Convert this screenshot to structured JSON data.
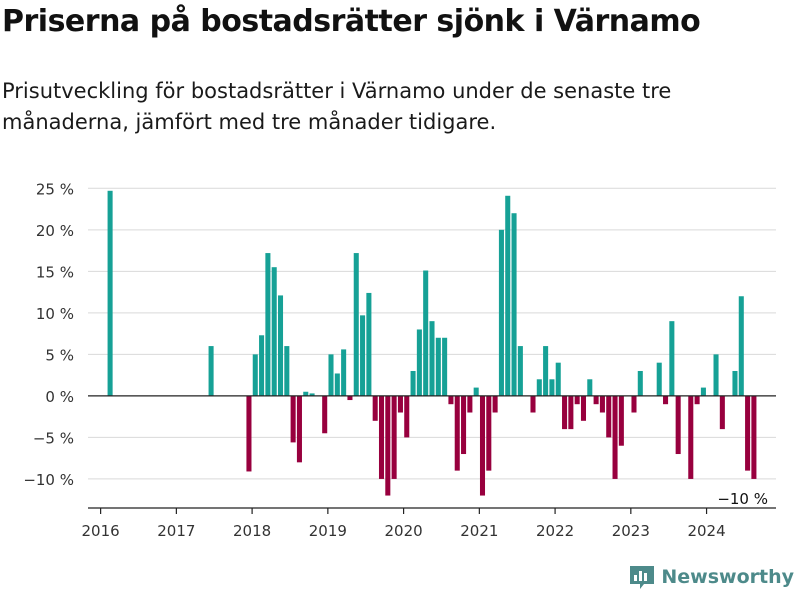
{
  "header": {
    "title": "Priserna på bostadsrätter sjönk i Värnamo",
    "subtitle": "Prisutveckling för bostadsrätter i Värnamo under de senaste tre månaderna, jämfört med tre månader tidigare."
  },
  "brand": {
    "name": "Newsworthy",
    "icon": "newsworthy-logo-icon",
    "color": "#4d8a8a"
  },
  "colors": {
    "positive": "#16a196",
    "negative": "#98003e",
    "axis": "#333333",
    "grid": "#d9d9d9"
  },
  "chart_data": {
    "type": "bar",
    "xlabel": "",
    "ylabel": "",
    "ylim": [
      -13.5,
      26
    ],
    "yticks": [
      -10,
      -5,
      0,
      5,
      10,
      15,
      20,
      25
    ],
    "ytick_labels": [
      "−10 %",
      "−5 %",
      "0 %",
      "5 %",
      "10 %",
      "15 %",
      "20 %",
      "25 %"
    ],
    "xlim": [
      "2015-11",
      "2024-12"
    ],
    "xtick_labels": [
      "2016",
      "2017",
      "2018",
      "2019",
      "2020",
      "2021",
      "2022",
      "2023",
      "2024"
    ],
    "grid": true,
    "last_value_label": "−10 %",
    "x": [
      "2016-02",
      "2017-06",
      "2017-12",
      "2018-01",
      "2018-02",
      "2018-03",
      "2018-04",
      "2018-05",
      "2018-06",
      "2018-07",
      "2018-08",
      "2018-09",
      "2018-10",
      "2018-11",
      "2018-12",
      "2019-01",
      "2019-02",
      "2019-03",
      "2019-04",
      "2019-05",
      "2019-06",
      "2019-07",
      "2019-08",
      "2019-09",
      "2019-10",
      "2019-11",
      "2019-12",
      "2020-01",
      "2020-02",
      "2020-03",
      "2020-04",
      "2020-05",
      "2020-06",
      "2020-07",
      "2020-08",
      "2020-09",
      "2020-10",
      "2020-11",
      "2020-12",
      "2021-01",
      "2021-02",
      "2021-03",
      "2021-04",
      "2021-05",
      "2021-06",
      "2021-07",
      "2021-08",
      "2021-09",
      "2021-10",
      "2021-11",
      "2021-12",
      "2022-01",
      "2022-02",
      "2022-03",
      "2022-04",
      "2022-05",
      "2022-06",
      "2022-07",
      "2022-08",
      "2022-09",
      "2022-10",
      "2022-11",
      "2022-12",
      "2023-01",
      "2023-02",
      "2023-03",
      "2023-04",
      "2023-05",
      "2023-06",
      "2023-07",
      "2023-08",
      "2023-09",
      "2023-10",
      "2023-11",
      "2023-12",
      "2024-01",
      "2024-02",
      "2024-03",
      "2024-04",
      "2024-05",
      "2024-06",
      "2024-07",
      "2024-08"
    ],
    "values": [
      24.7,
      6,
      -9.1,
      5,
      7.3,
      17.2,
      15.5,
      12.1,
      6,
      -5.6,
      -8,
      0.5,
      0.3,
      0,
      -4.5,
      5,
      2.7,
      5.6,
      -0.5,
      17.2,
      9.7,
      12.4,
      -3,
      -10,
      -12,
      -10,
      -2,
      -5,
      3,
      8,
      15.1,
      9,
      7,
      7,
      -1,
      -9,
      -7,
      -2,
      1,
      -12,
      -9,
      -2,
      20,
      24.1,
      22,
      6,
      0,
      -2,
      2,
      6,
      2,
      4,
      -4,
      -4,
      -1,
      -3,
      2,
      -1,
      -2,
      -5,
      -10,
      -6,
      0,
      -2,
      3,
      0,
      0,
      4,
      -1,
      9,
      -7,
      0,
      -10,
      -1,
      1,
      0,
      5,
      -4,
      0,
      3,
      12,
      -9,
      -10
    ]
  }
}
